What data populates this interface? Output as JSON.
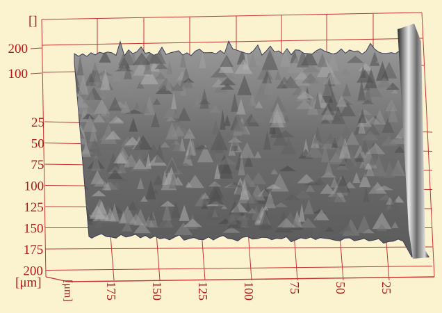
{
  "colors": {
    "background": "#FBF3CF",
    "frame": "#C83030",
    "label": "#B01818",
    "surface_dark": "#555555",
    "surface_light": "#E6E6E6"
  },
  "chart_data": {
    "type": "surface",
    "title": "",
    "z_axis": {
      "label": "[]",
      "ticks": [
        "200",
        "100"
      ]
    },
    "y_axis": {
      "label": "[μm]",
      "ticks": [
        "25",
        "50",
        "75",
        "100",
        "125",
        "150",
        "175",
        "200"
      ]
    },
    "x_axis": {
      "label": "[μm]",
      "ticks": [
        "175",
        "150",
        "125",
        "100",
        "75",
        "50",
        "25"
      ]
    },
    "grid": true,
    "surface": "rough 3D topography, grayscale height shading"
  }
}
